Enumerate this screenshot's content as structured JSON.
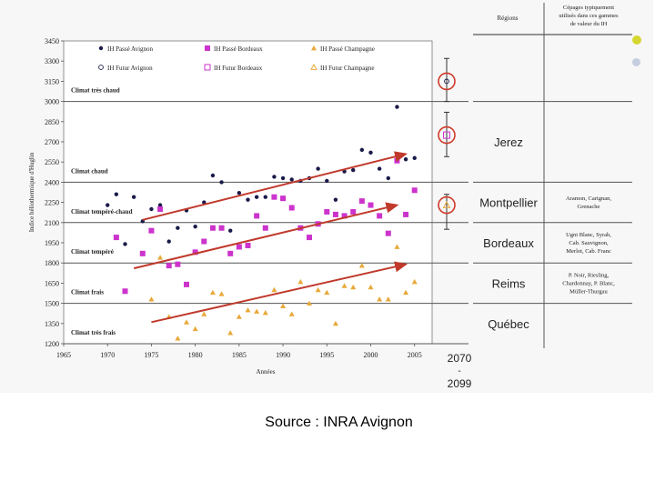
{
  "slide": {
    "source": "Source : INRA Avignon",
    "bullet_colors": [
      "#d6d631",
      "#c5cde0"
    ]
  },
  "chart_data": {
    "type": "scatter",
    "xlabel": "Années",
    "ylabel": "Indice héliothermique d'Huglin",
    "xlim": [
      1965,
      2007
    ],
    "ylim": [
      1200,
      3450
    ],
    "xticks": [
      "1965",
      "1970",
      "1975",
      "1980",
      "1985",
      "1990",
      "1995",
      "2000",
      "2005"
    ],
    "yticks": [
      "1200",
      "1350",
      "1500",
      "1650",
      "1800",
      "1950",
      "2100",
      "2250",
      "2400",
      "2550",
      "2700",
      "2850",
      "3000",
      "3150",
      "3300",
      "3450"
    ],
    "future_period_label": [
      "2070",
      "-",
      "2099"
    ],
    "legend": [
      {
        "label": "IH Passé Avignon",
        "marker": "dot",
        "color": "#1a1a4a"
      },
      {
        "label": "IH Passé Bordeaux",
        "marker": "square",
        "color": "#cc33cc"
      },
      {
        "label": "IH Passé Champagne",
        "marker": "triangle",
        "color": "#e8a93a"
      },
      {
        "label": "IH Futur Avignon",
        "marker": "open-dot",
        "color": "#1a1a4a"
      },
      {
        "label": "IH Futur Bordeaux",
        "marker": "open-square",
        "color": "#cc33cc"
      },
      {
        "label": "IH Futur Champagne",
        "marker": "open-triangle",
        "color": "#e8a93a"
      }
    ],
    "climate_bands": [
      {
        "label": "Climat très chaud",
        "value": 3000
      },
      {
        "label": "Climat chaud",
        "value": 2400
      },
      {
        "label": "Climat tempéré-chaud",
        "value": 2100
      },
      {
        "label": "Climat tempéré",
        "value": 1800
      },
      {
        "label": "Climat frais",
        "value": 1500
      },
      {
        "label": "Climat très frais",
        "value": 1200
      }
    ],
    "series": [
      {
        "name": "IH Passé Avignon",
        "color": "#1a1a4a",
        "x": [
          1970,
          1971,
          1972,
          1973,
          1974,
          1975,
          1976,
          1977,
          1978,
          1979,
          1980,
          1981,
          1982,
          1983,
          1984,
          1985,
          1986,
          1987,
          1988,
          1989,
          1990,
          1991,
          1992,
          1993,
          1994,
          1995,
          1996,
          1997,
          1998,
          1999,
          2000,
          2001,
          2002,
          2003,
          2004,
          2005
        ],
        "values": [
          2230,
          2310,
          1940,
          2290,
          2110,
          2200,
          2230,
          1960,
          2060,
          2190,
          2070,
          2250,
          2450,
          2400,
          2040,
          2320,
          2270,
          2290,
          2290,
          2440,
          2430,
          2420,
          2410,
          2430,
          2500,
          2410,
          2270,
          2480,
          2490,
          2640,
          2620,
          2500,
          2430,
          2960,
          2570,
          2580
        ]
      },
      {
        "name": "IH Passé Bordeaux",
        "color": "#cc33cc",
        "x": [
          1971,
          1972,
          1974,
          1975,
          1976,
          1977,
          1978,
          1979,
          1980,
          1981,
          1982,
          1983,
          1984,
          1985,
          1986,
          1987,
          1988,
          1989,
          1990,
          1991,
          1992,
          1993,
          1994,
          1995,
          1996,
          1997,
          1998,
          1999,
          2000,
          2001,
          2002,
          2003,
          2004,
          2005
        ],
        "values": [
          1990,
          1590,
          1870,
          2040,
          2200,
          1780,
          1790,
          1640,
          1880,
          1960,
          2060,
          2060,
          1870,
          1920,
          1930,
          2150,
          2060,
          2290,
          2280,
          2210,
          2060,
          1990,
          2090,
          2180,
          2160,
          2150,
          2180,
          2260,
          2230,
          2150,
          2020,
          2560,
          2160,
          2340
        ]
      },
      {
        "name": "IH Passé Champagne",
        "color": "#e8a93a",
        "x": [
          1975,
          1976,
          1977,
          1978,
          1979,
          1980,
          1981,
          1982,
          1983,
          1984,
          1985,
          1986,
          1987,
          1988,
          1989,
          1990,
          1991,
          1992,
          1993,
          1994,
          1995,
          1996,
          1997,
          1998,
          1999,
          2000,
          2001,
          2002,
          2003,
          2004,
          2005
        ],
        "values": [
          1530,
          1840,
          1400,
          1240,
          1360,
          1310,
          1420,
          1580,
          1570,
          1280,
          1400,
          1450,
          1440,
          1430,
          1600,
          1480,
          1420,
          1660,
          1500,
          1600,
          1580,
          1350,
          1630,
          1620,
          1780,
          1620,
          1530,
          1530,
          1920,
          1580,
          1660
        ]
      }
    ],
    "future": [
      {
        "name": "IH Futur Avignon",
        "color": "#1a1a4a",
        "x": 2068,
        "value": 3150,
        "low": 3000,
        "high": 3320
      },
      {
        "name": "IH Futur Bordeaux",
        "color": "#cc33cc",
        "x": 2068,
        "value": 2750,
        "low": 2590,
        "high": 2920
      },
      {
        "name": "IH Futur Champagne",
        "color": "#e8a93a",
        "x": 2068,
        "value": 2230,
        "low": 2050,
        "high": 2310
      }
    ],
    "trend_lines": [
      {
        "from": [
          1974,
          2120
        ],
        "to": [
          2004,
          2610
        ]
      },
      {
        "from": [
          1973,
          1760
        ],
        "to": [
          2003,
          2230
        ]
      },
      {
        "from": [
          1975,
          1360
        ],
        "to": [
          2004,
          1790
        ]
      }
    ],
    "regions_table": {
      "headers": [
        "Régions",
        "Cépages typiquement utilisés dans ces gammes de valeur du IH"
      ],
      "rows": [
        {
          "region": "Jerez",
          "varieties": ""
        },
        {
          "region": "Montpellier",
          "varieties": "Aramon, Carignan, Grenache"
        },
        {
          "region": "Bordeaux",
          "varieties": "Ugni Blanc, Syrah, Cab. Sauvignon, Merlot, Cab. Franc"
        },
        {
          "region": "Reims",
          "varieties": "P. Noir, Riesling, Chardonnay, P. Blanc, Müller-Thurgau"
        },
        {
          "region": "Québec",
          "varieties": ""
        }
      ]
    }
  }
}
